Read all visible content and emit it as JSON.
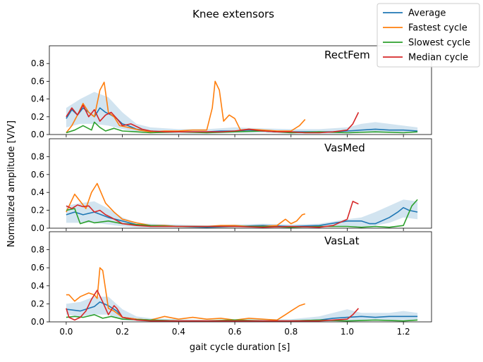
{
  "chart_data": {
    "type": "line",
    "title": "Knee extensors",
    "ylabel": "Normalized amplitude [V/V]",
    "xlabel": "gait cycle duration [s]",
    "xlim": [
      -0.06,
      1.3
    ],
    "ylim": [
      0,
      1.0
    ],
    "xticks": [
      0.0,
      0.2,
      0.4,
      0.6,
      0.8,
      1.0,
      1.2
    ],
    "xtick_labels": [
      "0.0",
      "0.2",
      "0.4",
      "0.6",
      "0.8",
      "1.0",
      "1.2"
    ],
    "yticks": [
      0.0,
      0.2,
      0.4,
      0.6,
      0.8
    ],
    "ytick_labels": [
      "0.0",
      "0.2",
      "0.4",
      "0.6",
      "0.8"
    ],
    "legend_position": "top-right",
    "legend": [
      {
        "name": "Average",
        "color": "#1f77b4"
      },
      {
        "name": "Fastest cycle",
        "color": "#ff7f0e"
      },
      {
        "name": "Slowest cycle",
        "color": "#2ca02c"
      },
      {
        "name": "Median cycle",
        "color": "#d62728"
      }
    ],
    "panels": [
      {
        "label": "RectFem",
        "series": [
          {
            "name": "Average",
            "color": "#1f77b4",
            "x": [
              0.0,
              0.02,
              0.04,
              0.06,
              0.08,
              0.1,
              0.12,
              0.14,
              0.16,
              0.18,
              0.2,
              0.22,
              0.25,
              0.3,
              0.35,
              0.4,
              0.45,
              0.5,
              0.55,
              0.6,
              0.65,
              0.7,
              0.75,
              0.8,
              0.85,
              0.9,
              0.95,
              1.0,
              1.05,
              1.1,
              1.15,
              1.2,
              1.25
            ],
            "y": [
              0.18,
              0.28,
              0.22,
              0.3,
              0.25,
              0.2,
              0.3,
              0.25,
              0.22,
              0.18,
              0.12,
              0.1,
              0.06,
              0.04,
              0.03,
              0.03,
              0.03,
              0.03,
              0.04,
              0.04,
              0.05,
              0.04,
              0.03,
              0.03,
              0.03,
              0.03,
              0.03,
              0.04,
              0.05,
              0.06,
              0.05,
              0.05,
              0.04
            ]
          },
          {
            "name": "Fastest cycle",
            "color": "#ff7f0e",
            "x": [
              0.0,
              0.02,
              0.04,
              0.06,
              0.08,
              0.1,
              0.12,
              0.135,
              0.15,
              0.17,
              0.19,
              0.22,
              0.26,
              0.3,
              0.35,
              0.4,
              0.45,
              0.5,
              0.52,
              0.53,
              0.545,
              0.56,
              0.58,
              0.6,
              0.62,
              0.65,
              0.7,
              0.75,
              0.8,
              0.83,
              0.85
            ],
            "y": [
              0.02,
              0.1,
              0.22,
              0.35,
              0.25,
              0.2,
              0.5,
              0.59,
              0.25,
              0.2,
              0.1,
              0.08,
              0.05,
              0.03,
              0.04,
              0.04,
              0.05,
              0.05,
              0.3,
              0.6,
              0.5,
              0.15,
              0.22,
              0.18,
              0.05,
              0.06,
              0.05,
              0.04,
              0.04,
              0.1,
              0.17
            ]
          },
          {
            "name": "Slowest cycle",
            "color": "#2ca02c",
            "x": [
              0.0,
              0.03,
              0.06,
              0.09,
              0.1,
              0.12,
              0.14,
              0.17,
              0.2,
              0.25,
              0.3,
              0.4,
              0.5,
              0.6,
              0.7,
              0.8,
              0.9,
              1.0,
              1.1,
              1.2,
              1.25
            ],
            "y": [
              0.02,
              0.05,
              0.1,
              0.05,
              0.14,
              0.08,
              0.04,
              0.07,
              0.04,
              0.03,
              0.02,
              0.03,
              0.02,
              0.03,
              0.04,
              0.02,
              0.03,
              0.02,
              0.03,
              0.02,
              0.03
            ]
          },
          {
            "name": "Median cycle",
            "color": "#d62728",
            "x": [
              0.0,
              0.02,
              0.04,
              0.06,
              0.08,
              0.1,
              0.12,
              0.14,
              0.16,
              0.18,
              0.2,
              0.23,
              0.27,
              0.3,
              0.35,
              0.4,
              0.45,
              0.5,
              0.55,
              0.6,
              0.65,
              0.7,
              0.75,
              0.8,
              0.85,
              0.9,
              0.95,
              1.0,
              1.02,
              1.04
            ],
            "y": [
              0.2,
              0.3,
              0.22,
              0.33,
              0.2,
              0.28,
              0.15,
              0.22,
              0.25,
              0.18,
              0.1,
              0.12,
              0.06,
              0.04,
              0.03,
              0.03,
              0.03,
              0.03,
              0.03,
              0.04,
              0.06,
              0.04,
              0.03,
              0.03,
              0.02,
              0.02,
              0.03,
              0.05,
              0.12,
              0.25
            ]
          }
        ],
        "band": {
          "x": [
            0.0,
            0.05,
            0.1,
            0.15,
            0.2,
            0.25,
            0.3,
            0.4,
            0.5,
            0.6,
            0.7,
            0.8,
            0.9,
            1.0,
            1.05,
            1.1,
            1.15,
            1.2,
            1.25
          ],
          "upper": [
            0.3,
            0.4,
            0.48,
            0.42,
            0.25,
            0.12,
            0.08,
            0.06,
            0.06,
            0.08,
            0.07,
            0.06,
            0.06,
            0.08,
            0.12,
            0.14,
            0.12,
            0.1,
            0.08
          ],
          "lower": [
            0.08,
            0.12,
            0.12,
            0.1,
            0.06,
            0.03,
            0.02,
            0.01,
            0.01,
            0.02,
            0.02,
            0.01,
            0.01,
            0.01,
            0.02,
            0.02,
            0.02,
            0.02,
            0.02
          ]
        }
      },
      {
        "label": "VasMed",
        "series": [
          {
            "name": "Average",
            "color": "#1f77b4",
            "x": [
              0.0,
              0.03,
              0.06,
              0.1,
              0.15,
              0.2,
              0.25,
              0.3,
              0.4,
              0.5,
              0.6,
              0.7,
              0.8,
              0.9,
              1.0,
              1.05,
              1.08,
              1.1,
              1.15,
              1.18,
              1.2,
              1.22,
              1.25
            ],
            "y": [
              0.15,
              0.18,
              0.15,
              0.18,
              0.12,
              0.08,
              0.04,
              0.03,
              0.02,
              0.01,
              0.02,
              0.03,
              0.02,
              0.03,
              0.08,
              0.08,
              0.05,
              0.05,
              0.12,
              0.18,
              0.23,
              0.2,
              0.18
            ]
          },
          {
            "name": "Fastest cycle",
            "color": "#ff7f0e",
            "x": [
              0.0,
              0.03,
              0.05,
              0.07,
              0.09,
              0.11,
              0.14,
              0.17,
              0.2,
              0.25,
              0.3,
              0.35,
              0.4,
              0.45,
              0.5,
              0.55,
              0.6,
              0.65,
              0.7,
              0.75,
              0.78,
              0.8,
              0.82,
              0.84,
              0.85
            ],
            "y": [
              0.18,
              0.38,
              0.3,
              0.22,
              0.4,
              0.5,
              0.28,
              0.18,
              0.1,
              0.06,
              0.03,
              0.03,
              0.02,
              0.02,
              0.02,
              0.03,
              0.03,
              0.02,
              0.02,
              0.03,
              0.1,
              0.05,
              0.08,
              0.15,
              0.16
            ]
          },
          {
            "name": "Slowest cycle",
            "color": "#2ca02c",
            "x": [
              0.0,
              0.03,
              0.05,
              0.08,
              0.1,
              0.15,
              0.2,
              0.3,
              0.4,
              0.5,
              0.6,
              0.7,
              0.8,
              0.9,
              1.0,
              1.05,
              1.1,
              1.15,
              1.2,
              1.23,
              1.25
            ],
            "y": [
              0.2,
              0.22,
              0.05,
              0.08,
              0.06,
              0.08,
              0.05,
              0.03,
              0.02,
              0.02,
              0.02,
              0.02,
              0.01,
              0.02,
              0.02,
              0.01,
              0.02,
              0.01,
              0.03,
              0.25,
              0.32
            ]
          },
          {
            "name": "Median cycle",
            "color": "#d62728",
            "x": [
              0.0,
              0.02,
              0.04,
              0.06,
              0.08,
              0.1,
              0.12,
              0.14,
              0.16,
              0.2,
              0.25,
              0.3,
              0.4,
              0.5,
              0.6,
              0.7,
              0.8,
              0.9,
              0.95,
              1.0,
              1.02,
              1.04
            ],
            "y": [
              0.25,
              0.22,
              0.26,
              0.24,
              0.25,
              0.18,
              0.2,
              0.15,
              0.12,
              0.05,
              0.03,
              0.02,
              0.02,
              0.02,
              0.02,
              0.01,
              0.02,
              0.01,
              0.03,
              0.1,
              0.3,
              0.27
            ]
          }
        ],
        "band": {
          "x": [
            0.0,
            0.05,
            0.1,
            0.15,
            0.2,
            0.25,
            0.3,
            0.4,
            0.5,
            0.6,
            0.7,
            0.8,
            0.9,
            1.0,
            1.05,
            1.1,
            1.15,
            1.2,
            1.25
          ],
          "upper": [
            0.25,
            0.28,
            0.3,
            0.22,
            0.12,
            0.06,
            0.05,
            0.04,
            0.03,
            0.04,
            0.05,
            0.04,
            0.05,
            0.1,
            0.12,
            0.18,
            0.25,
            0.32,
            0.3
          ],
          "lower": [
            0.06,
            0.06,
            0.06,
            0.04,
            0.02,
            0.01,
            0.01,
            0.01,
            0.0,
            0.01,
            0.01,
            0.01,
            0.01,
            0.02,
            0.02,
            0.03,
            0.06,
            0.12,
            0.1
          ]
        }
      },
      {
        "label": "VasLat",
        "series": [
          {
            "name": "Average",
            "color": "#1f77b4",
            "x": [
              0.0,
              0.05,
              0.1,
              0.12,
              0.15,
              0.18,
              0.2,
              0.25,
              0.3,
              0.4,
              0.5,
              0.6,
              0.7,
              0.8,
              0.9,
              0.95,
              1.0,
              1.05,
              1.1,
              1.15,
              1.2,
              1.25
            ],
            "y": [
              0.14,
              0.12,
              0.17,
              0.22,
              0.18,
              0.12,
              0.05,
              0.03,
              0.02,
              0.01,
              0.01,
              0.01,
              0.01,
              0.01,
              0.02,
              0.04,
              0.05,
              0.06,
              0.05,
              0.06,
              0.06,
              0.06
            ]
          },
          {
            "name": "Fastest cycle",
            "color": "#ff7f0e",
            "x": [
              0.0,
              0.01,
              0.03,
              0.05,
              0.08,
              0.1,
              0.11,
              0.12,
              0.13,
              0.15,
              0.17,
              0.2,
              0.25,
              0.3,
              0.35,
              0.4,
              0.45,
              0.5,
              0.55,
              0.6,
              0.65,
              0.7,
              0.75,
              0.78,
              0.8,
              0.83,
              0.85
            ],
            "y": [
              0.3,
              0.3,
              0.23,
              0.28,
              0.32,
              0.3,
              0.26,
              0.6,
              0.57,
              0.15,
              0.12,
              0.05,
              0.03,
              0.02,
              0.06,
              0.03,
              0.05,
              0.03,
              0.04,
              0.02,
              0.04,
              0.03,
              0.02,
              0.08,
              0.12,
              0.18,
              0.2
            ]
          },
          {
            "name": "Slowest cycle",
            "color": "#2ca02c",
            "x": [
              0.0,
              0.03,
              0.06,
              0.1,
              0.13,
              0.16,
              0.2,
              0.3,
              0.4,
              0.5,
              0.6,
              0.7,
              0.8,
              0.9,
              1.0,
              1.1,
              1.2,
              1.25
            ],
            "y": [
              0.05,
              0.06,
              0.05,
              0.08,
              0.04,
              0.06,
              0.03,
              0.02,
              0.01,
              0.01,
              0.02,
              0.01,
              0.01,
              0.02,
              0.01,
              0.02,
              0.01,
              0.02
            ]
          },
          {
            "name": "Median cycle",
            "color": "#d62728",
            "x": [
              0.0,
              0.01,
              0.03,
              0.05,
              0.07,
              0.09,
              0.11,
              0.13,
              0.15,
              0.17,
              0.18,
              0.2,
              0.25,
              0.3,
              0.4,
              0.5,
              0.6,
              0.7,
              0.8,
              0.9,
              0.95,
              1.0,
              1.02,
              1.04
            ],
            "y": [
              0.15,
              0.05,
              0.02,
              0.05,
              0.12,
              0.25,
              0.35,
              0.22,
              0.08,
              0.18,
              0.15,
              0.05,
              0.02,
              0.01,
              0.01,
              0.01,
              0.01,
              0.01,
              0.01,
              0.01,
              0.02,
              0.03,
              0.08,
              0.15
            ]
          }
        ],
        "band": {
          "x": [
            0.0,
            0.05,
            0.1,
            0.15,
            0.2,
            0.25,
            0.3,
            0.4,
            0.5,
            0.6,
            0.7,
            0.8,
            0.9,
            0.95,
            1.0,
            1.05,
            1.1,
            1.15,
            1.2,
            1.25
          ],
          "upper": [
            0.2,
            0.22,
            0.28,
            0.28,
            0.14,
            0.06,
            0.04,
            0.03,
            0.02,
            0.03,
            0.03,
            0.03,
            0.06,
            0.1,
            0.14,
            0.1,
            0.1,
            0.1,
            0.12,
            0.1
          ],
          "lower": [
            0.08,
            0.06,
            0.08,
            0.08,
            0.02,
            0.01,
            0.0,
            0.0,
            0.0,
            0.0,
            0.0,
            0.0,
            0.0,
            0.01,
            0.01,
            0.02,
            0.02,
            0.02,
            0.02,
            0.02
          ]
        }
      }
    ]
  }
}
